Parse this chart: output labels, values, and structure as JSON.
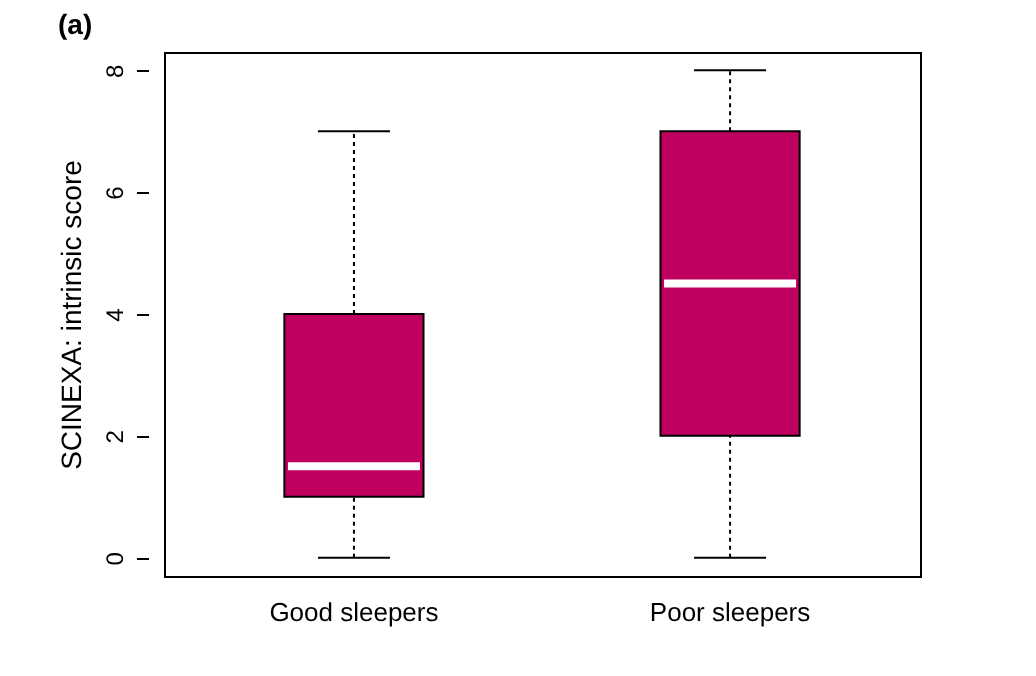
{
  "chart_data": {
    "type": "box",
    "title": "(a)",
    "ylabel": "SCINEXA: intrinsic score",
    "categories": [
      "Good sleepers",
      "Poor sleepers"
    ],
    "series": [
      {
        "color": "#bf005f",
        "boxes": [
          {
            "low": 0,
            "q1": 1,
            "median": 1.5,
            "q3": 4,
            "high": 7
          },
          {
            "low": 0,
            "q1": 2,
            "median": 4.5,
            "q3": 7,
            "high": 8
          }
        ]
      }
    ],
    "ylim": [
      -0.3,
      8.3
    ],
    "yticks": [
      0,
      2,
      4,
      6,
      8
    ]
  }
}
